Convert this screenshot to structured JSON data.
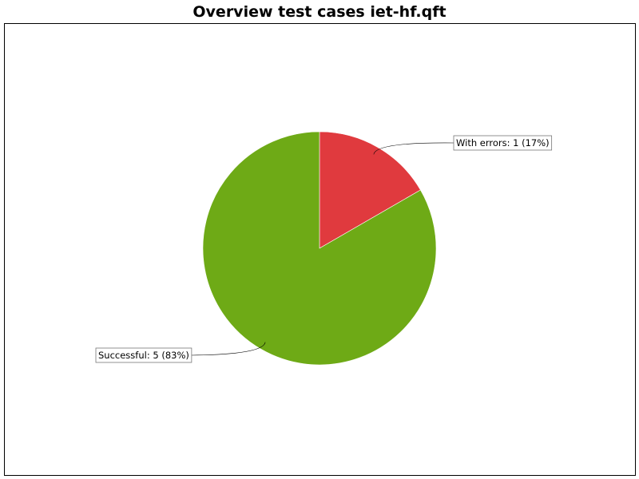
{
  "chart_data": {
    "type": "pie",
    "title": "Overview test cases iet-hf.qft",
    "slices": [
      {
        "label": "With errors",
        "value": 1,
        "percent": 17,
        "color": "#e03a3e",
        "display": "With errors: 1 (17%)"
      },
      {
        "label": "Successful",
        "value": 5,
        "percent": 83,
        "color": "#6eaa16",
        "display": "Successful: 5 (83%)"
      }
    ]
  }
}
